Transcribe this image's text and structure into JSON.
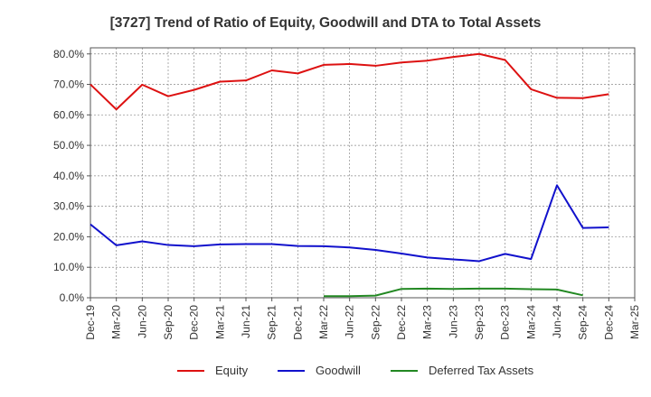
{
  "chart_data": {
    "type": "line",
    "title": "[3727]  Trend of Ratio of Equity, Goodwill and DTA to Total Assets",
    "xlabel": "",
    "ylabel": "",
    "categories": [
      "Dec-19",
      "Mar-20",
      "Jun-20",
      "Sep-20",
      "Dec-20",
      "Mar-21",
      "Jun-21",
      "Sep-21",
      "Dec-21",
      "Mar-22",
      "Jun-22",
      "Sep-22",
      "Dec-22",
      "Mar-23",
      "Jun-23",
      "Sep-23",
      "Dec-23",
      "Mar-24",
      "Jun-24",
      "Sep-24",
      "Dec-24",
      "Mar-25"
    ],
    "ylim": [
      0,
      80
    ],
    "yticks": [
      0,
      10,
      20,
      30,
      40,
      50,
      60,
      70,
      80
    ],
    "ytick_labels": [
      "0.0%",
      "10.0%",
      "20.0%",
      "30.0%",
      "40.0%",
      "50.0%",
      "60.0%",
      "70.0%",
      "80.0%"
    ],
    "grid": true,
    "legend_position": "bottom",
    "series": [
      {
        "name": "Equity",
        "color": "#dd1111",
        "values": [
          70.0,
          61.8,
          69.9,
          66.1,
          68.2,
          70.9,
          71.3,
          74.6,
          73.6,
          76.4,
          76.7,
          76.1,
          77.2,
          77.8,
          79.0,
          80.0,
          78.0,
          68.4,
          65.6,
          65.5,
          66.8,
          null
        ]
      },
      {
        "name": "Goodwill",
        "color": "#1111cc",
        "values": [
          24.1,
          17.2,
          18.5,
          17.3,
          16.9,
          17.5,
          17.6,
          17.6,
          17.0,
          16.9,
          16.5,
          15.7,
          14.5,
          13.2,
          12.6,
          12.0,
          14.4,
          12.7,
          36.9,
          22.9,
          23.1,
          null
        ]
      },
      {
        "name": "Deferred Tax Assets",
        "color": "#228822",
        "values": [
          null,
          null,
          null,
          null,
          null,
          null,
          null,
          null,
          null,
          0.5,
          0.5,
          0.7,
          2.9,
          3.0,
          2.9,
          3.0,
          3.0,
          2.8,
          2.7,
          0.8,
          null,
          null
        ]
      }
    ]
  }
}
